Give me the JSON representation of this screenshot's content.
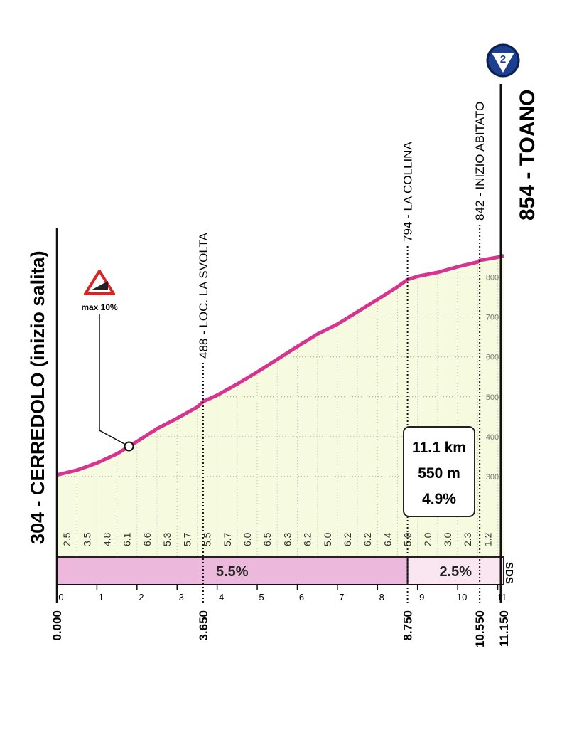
{
  "chart_data": {
    "type": "area",
    "start_label": "304 - CERREDOLO (inizio salita)",
    "end_label": "854 - TOANO",
    "badge": "2",
    "sponsor": "SDS",
    "color": "#d6358f",
    "fill": "#f6fadf",
    "x": [
      0,
      0.5,
      1,
      1.5,
      2,
      2.5,
      3,
      3.5,
      3.65,
      4,
      4.5,
      5,
      5.5,
      6,
      6.5,
      7,
      7.5,
      8,
      8.5,
      8.75,
      9,
      9.5,
      10,
      10.5,
      10.55,
      11,
      11.15
    ],
    "values": [
      304,
      316,
      334,
      357,
      388,
      420,
      446,
      474,
      488,
      504,
      532,
      562,
      594,
      626,
      657,
      682,
      713,
      744,
      776,
      794,
      802,
      812,
      826,
      838,
      842,
      850,
      854
    ],
    "xlim": [
      0,
      11.15
    ],
    "ylim": [
      100,
      860
    ],
    "xticks": [
      0,
      1,
      2,
      3,
      4,
      5,
      6,
      7,
      8,
      9,
      10,
      11
    ],
    "yticks": [
      300,
      400,
      500,
      600,
      700,
      800
    ],
    "gradients": {
      "x": [
        0.25,
        0.75,
        1.25,
        1.75,
        2.25,
        2.75,
        3.25,
        3.75,
        4.25,
        4.75,
        5.25,
        5.75,
        6.25,
        6.75,
        7.25,
        7.75,
        8.25,
        8.75,
        9.25,
        9.75,
        10.25,
        10.75
      ],
      "values": [
        2.5,
        3.5,
        4.8,
        6.1,
        6.6,
        5.3,
        5.7,
        5.5,
        5.7,
        6.0,
        6.5,
        6.3,
        6.2,
        5.0,
        6.2,
        6.2,
        6.4,
        5.0,
        2.0,
        3.0,
        2.3,
        1.2
      ],
      "value_labels": [
        "2.5",
        "3.5",
        "4.8",
        "6.1",
        "6.6",
        "5.3",
        "5.7",
        "5.5",
        "5.7",
        "6.0",
        "6.5",
        "6.3",
        "6.2",
        "5.0",
        "6.2",
        "6.2",
        "6.4",
        "5.0",
        "2.0",
        "3.0",
        "2.3",
        "1.2"
      ]
    },
    "sections": [
      {
        "start": 0,
        "end": 8.75,
        "value": 5.5,
        "value_label": "5.5%",
        "color": "#ecb8dc"
      },
      {
        "start": 8.75,
        "end": 11.15,
        "value": 2.5,
        "value_label": "2.5%",
        "color": "#f9e6f1"
      }
    ],
    "distance_marks": [
      {
        "value": 0,
        "label": "0.000"
      },
      {
        "value": 3.65,
        "label": "3.650"
      },
      {
        "value": 8.75,
        "label": "8.750"
      },
      {
        "value": 10.55,
        "label": "10.550"
      },
      {
        "value": 11.15,
        "label": "11.150"
      }
    ],
    "waypoints": [
      {
        "km": 3.65,
        "label": "488 - LOC. LA SVOLTA"
      },
      {
        "km": 8.75,
        "label": "794 - LA COLLINA"
      },
      {
        "km": 10.55,
        "label": "842 - INIZIO ABITATO"
      }
    ],
    "summary": [
      "11.1 km",
      "550 m",
      "4.9%"
    ],
    "max_gradient": {
      "km": 1.8,
      "label": "max 10%"
    }
  }
}
